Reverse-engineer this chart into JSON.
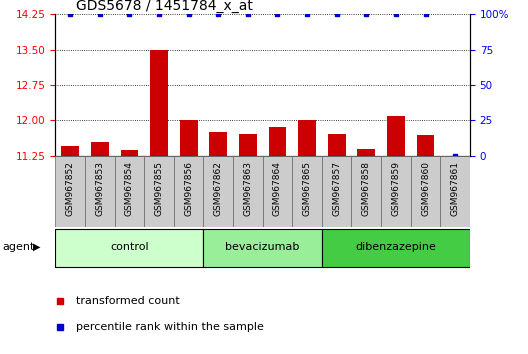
{
  "title": "GDS5678 / 1451784_x_at",
  "samples": [
    "GSM967852",
    "GSM967853",
    "GSM967854",
    "GSM967855",
    "GSM967856",
    "GSM967862",
    "GSM967863",
    "GSM967864",
    "GSM967865",
    "GSM967857",
    "GSM967858",
    "GSM967859",
    "GSM967860",
    "GSM967861"
  ],
  "bar_values": [
    11.45,
    11.55,
    11.38,
    13.5,
    12.0,
    11.75,
    11.72,
    11.85,
    12.0,
    11.72,
    11.4,
    12.1,
    11.68,
    11.25
  ],
  "percentile_values": [
    100,
    100,
    100,
    100,
    100,
    100,
    100,
    100,
    100,
    100,
    100,
    100,
    100,
    0
  ],
  "bar_color": "#cc0000",
  "percentile_color": "#0000cc",
  "ylim_left": [
    11.25,
    14.25
  ],
  "ylim_right": [
    0,
    100
  ],
  "yticks_left": [
    11.25,
    12.0,
    12.75,
    13.5,
    14.25
  ],
  "yticks_right": [
    0,
    25,
    50,
    75,
    100
  ],
  "groups": [
    {
      "label": "control",
      "start": 0,
      "end": 5,
      "color": "#ccffcc"
    },
    {
      "label": "bevacizumab",
      "start": 5,
      "end": 9,
      "color": "#99ee99"
    },
    {
      "label": "dibenzazepine",
      "start": 9,
      "end": 14,
      "color": "#44cc44"
    }
  ],
  "agent_label": "agent",
  "legend_items": [
    {
      "label": "transformed count",
      "color": "#cc0000"
    },
    {
      "label": "percentile rank within the sample",
      "color": "#0000cc"
    }
  ],
  "bar_width": 0.6,
  "bar_bottom": 11.25
}
